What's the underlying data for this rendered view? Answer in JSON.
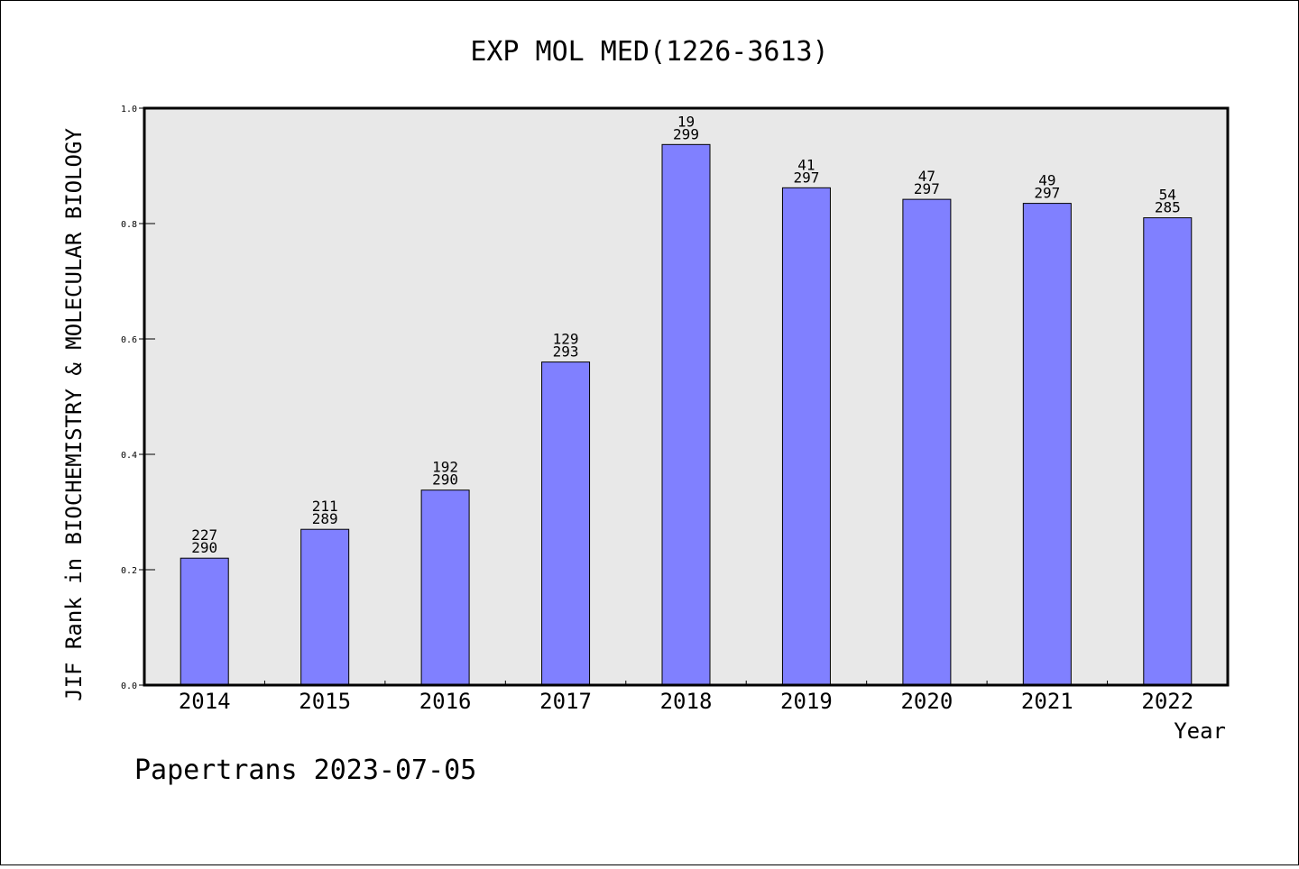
{
  "chart_data": {
    "type": "bar",
    "title": "EXP MOL MED(1226-3613)",
    "xlabel": "Year",
    "ylabel": "JIF Rank in BIOCHEMISTRY & MOLECULAR BIOLOGY",
    "ylim": [
      0,
      1.0
    ],
    "yticks": [
      "0.0",
      "0.2",
      "0.4",
      "0.6",
      "0.8",
      "1.0"
    ],
    "categories": [
      "2014",
      "2015",
      "2016",
      "2017",
      "2018",
      "2019",
      "2020",
      "2021",
      "2022"
    ],
    "values": [
      0.22,
      0.27,
      0.338,
      0.56,
      0.937,
      0.862,
      0.842,
      0.835,
      0.81
    ],
    "rank_labels": [
      {
        "rank": "227",
        "total": "290"
      },
      {
        "rank": "211",
        "total": "289"
      },
      {
        "rank": "192",
        "total": "290"
      },
      {
        "rank": "129",
        "total": "293"
      },
      {
        "rank": "19",
        "total": "299"
      },
      {
        "rank": "41",
        "total": "297"
      },
      {
        "rank": "47",
        "total": "297"
      },
      {
        "rank": "49",
        "total": "297"
      },
      {
        "rank": "54",
        "total": "285"
      }
    ],
    "grid": false,
    "colors": {
      "bar": "#8080ff",
      "plot_background": "#e8e8e8",
      "axis": "#000000"
    }
  },
  "footer": "Papertrans 2023-07-05"
}
